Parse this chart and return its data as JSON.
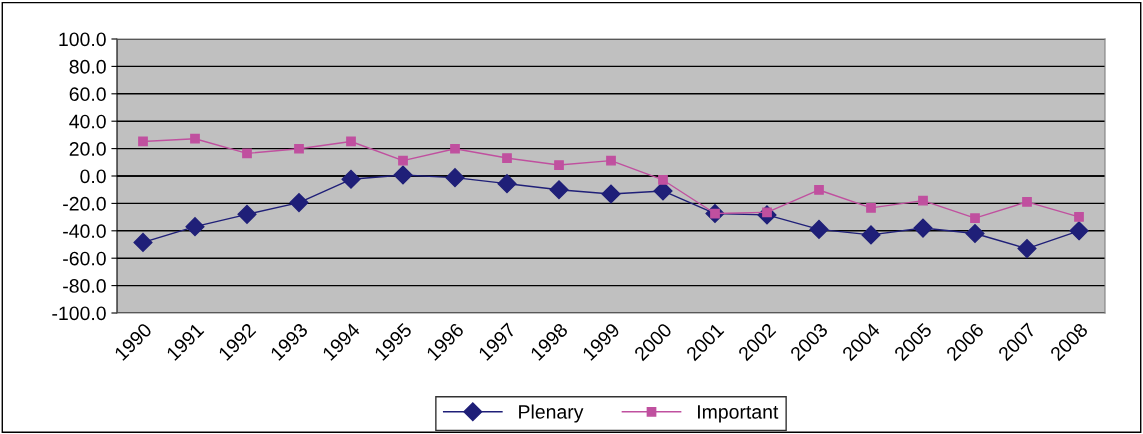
{
  "chart_data": {
    "type": "line",
    "categories": [
      "1990",
      "1991",
      "1992",
      "1993",
      "1994",
      "1995",
      "1996",
      "1997",
      "1998",
      "1999",
      "2000",
      "2001",
      "2002",
      "2003",
      "2004",
      "2005",
      "2006",
      "2007",
      "2008"
    ],
    "series": [
      {
        "name": "Plenary",
        "color": "#1f1f78",
        "marker": "diamond",
        "values": [
          -48.5,
          -37,
          -28,
          -19.4,
          -2.4,
          0.7,
          -1.2,
          -5.6,
          -10,
          -13.1,
          -10.9,
          -27.4,
          -28.4,
          -39,
          -43,
          -38,
          -42,
          -53,
          -40
        ]
      },
      {
        "name": "Important",
        "color": "#c0509f",
        "marker": "square",
        "values": [
          25.2,
          27.2,
          16.5,
          19.9,
          25.2,
          11.2,
          19.9,
          13.1,
          8.0,
          11.2,
          -2.9,
          -27.4,
          -26.5,
          -10.2,
          -23.3,
          -18,
          -30.8,
          -18.9,
          -29.9
        ]
      }
    ],
    "ylim": [
      -100,
      100
    ],
    "yticks": [
      {
        "value": -100,
        "label": "-100.0"
      },
      {
        "value": -80,
        "label": "-80.0"
      },
      {
        "value": -60,
        "label": "-60.0"
      },
      {
        "value": -40,
        "label": "-40.0"
      },
      {
        "value": -20,
        "label": "-20.0"
      },
      {
        "value": 0,
        "label": "0.0"
      },
      {
        "value": 20,
        "label": "20.0"
      },
      {
        "value": 40,
        "label": "40.0"
      },
      {
        "value": 60,
        "label": "60.0"
      },
      {
        "value": 80,
        "label": "80.0"
      },
      {
        "value": 100,
        "label": "100.0"
      }
    ],
    "grid": "y",
    "legend": "bottom",
    "line_style": "solid"
  }
}
